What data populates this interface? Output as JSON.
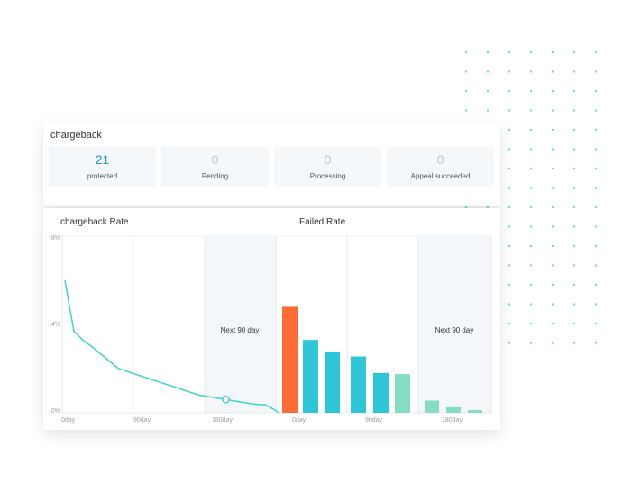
{
  "accent": "#3fd3c8",
  "dashboard": {
    "title": "chargeback",
    "stats": [
      {
        "value": "21",
        "label": "protected"
      },
      {
        "value": "0",
        "label": "Pending"
      },
      {
        "value": "0",
        "label": "Processing"
      },
      {
        "value": "0",
        "label": "Appeal succeeded"
      }
    ]
  },
  "chart_data": [
    {
      "type": "line",
      "title": "chargeback  Rate",
      "y_tick_labels": [
        "8%",
        "4%",
        "0%"
      ],
      "x_tick_labels": [
        "0day",
        "90day",
        "180day"
      ],
      "ylim": [
        0,
        8
      ],
      "projection_label": "Next  90 day",
      "series": [
        {
          "x": [
            0,
            10,
            20,
            30,
            45,
            60,
            75,
            90,
            105,
            120,
            135,
            150,
            165,
            180,
            195,
            210,
            225,
            240
          ],
          "y": [
            6.0,
            3.7,
            3.3,
            3.0,
            2.5,
            2.0,
            1.8,
            1.6,
            1.4,
            1.2,
            1.0,
            0.8,
            0.7,
            0.6,
            0.5,
            0.4,
            0.35,
            0.0
          ]
        }
      ],
      "marker_x": 180,
      "colors": {
        "line": "#3fd3c8"
      }
    },
    {
      "type": "bar",
      "title": "Failed  Rate",
      "x_tick_labels": [
        "0day",
        "90day",
        "180day"
      ],
      "projection_label": "Next  90 day",
      "values": [
        4.8,
        3.3,
        2.75,
        2.55,
        1.8,
        1.75,
        0.55,
        0.25,
        0.12
      ],
      "bar_colors": [
        "#ff6b35",
        "#2ec6d6",
        "#2ec6d6",
        "#2ec6d6",
        "#2ec6d6",
        "#86dcc3",
        "#86dcc3",
        "#86dcc3",
        "#86dcc3"
      ]
    }
  ]
}
